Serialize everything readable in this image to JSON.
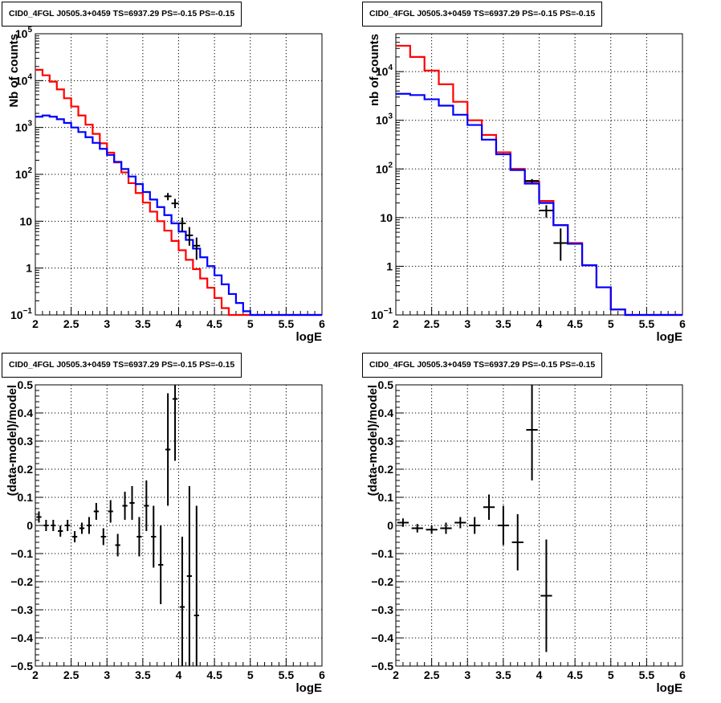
{
  "colors": {
    "data": "#000000",
    "total_model": "#ff0000",
    "source_model": "#0000ff",
    "grid": "#000000"
  },
  "chart_data": [
    {
      "type": "histogram",
      "title": "CID0_4FGL J0505.3+0459 TS=6937.29 PS=-0.15 PS=-0.15",
      "xlabel": "logE",
      "ylabel": "Nb of counts",
      "xlim": [
        2,
        6
      ],
      "ylim": [
        0.1,
        100000
      ],
      "yscale": "log",
      "grid": true,
      "x_ticks": [
        "2",
        "2.5",
        "3",
        "3.5",
        "4",
        "4.5",
        "5",
        "5.5",
        "6"
      ],
      "y_ticks": [
        {
          "value": 0.1,
          "base": "10",
          "exp": "−1"
        },
        {
          "value": 1,
          "label": "1"
        },
        {
          "value": 10,
          "label": "10"
        },
        {
          "value": 100,
          "base": "10",
          "exp": "2"
        },
        {
          "value": 1000,
          "base": "10",
          "exp": "3"
        },
        {
          "value": 10000,
          "base": "10",
          "exp": "4"
        },
        {
          "value": 100000,
          "base": "10",
          "exp": "5"
        }
      ],
      "bin_edges": [
        2.0,
        2.1,
        2.2,
        2.3,
        2.4,
        2.5,
        2.6,
        2.7,
        2.8,
        2.9,
        3.0,
        3.1,
        3.2,
        3.3,
        3.4,
        3.5,
        3.6,
        3.7,
        3.8,
        3.9,
        4.0,
        4.1,
        4.2,
        4.3,
        4.4,
        4.5,
        4.6,
        4.7,
        4.8,
        4.9,
        5.0,
        5.1,
        5.2,
        5.3,
        5.4,
        5.5,
        5.6,
        5.7,
        5.8,
        5.9,
        6.0
      ],
      "series": [
        {
          "role": "total_model",
          "color": "#ff0000",
          "values": [
            17000,
            13000,
            9500,
            6500,
            4200,
            2800,
            1800,
            1150,
            730,
            460,
            290,
            180,
            110,
            65,
            40,
            25,
            16,
            10,
            6.3,
            3.8,
            2.4,
            1.5,
            0.95,
            0.6,
            0.38,
            0.23,
            0.14,
            0.1,
            0.1,
            0.1,
            0.1,
            0.1,
            0.1,
            0.1,
            0.1,
            0.1,
            0.1,
            0.1,
            0.1,
            0.1
          ]
        },
        {
          "role": "source_model",
          "color": "#0000ff",
          "values": [
            1700,
            1800,
            1700,
            1500,
            1250,
            1000,
            800,
            620,
            470,
            350,
            260,
            185,
            130,
            90,
            62,
            42,
            29,
            20,
            13.5,
            9,
            6,
            4,
            2.6,
            1.7,
            1.1,
            0.7,
            0.45,
            0.28,
            0.18,
            0.12,
            0.1,
            0.1,
            0.1,
            0.1,
            0.1,
            0.1,
            0.1,
            0.1,
            0.1,
            0.1
          ]
        },
        {
          "role": "data",
          "color": "#000000",
          "points": [
            {
              "x": 3.85,
              "y": 34,
              "lo": 28,
              "hi": 40
            },
            {
              "x": 3.95,
              "y": 24,
              "lo": 19,
              "hi": 30
            },
            {
              "x": 4.05,
              "y": 9,
              "lo": 6,
              "hi": 12
            },
            {
              "x": 4.15,
              "y": 5,
              "lo": 3,
              "hi": 7.5
            },
            {
              "x": 4.25,
              "y": 3,
              "lo": 1.5,
              "hi": 4.5
            }
          ]
        }
      ]
    },
    {
      "type": "histogram",
      "title": "CID0_4FGL J0505.3+0459 TS=6937.29 PS=-0.15 PS=-0.15",
      "xlabel": "logE",
      "ylabel": "nb of counts",
      "xlim": [
        2,
        6
      ],
      "ylim": [
        0.1,
        60000
      ],
      "yscale": "log",
      "grid": true,
      "x_ticks": [
        "2",
        "2.5",
        "3",
        "3.5",
        "4",
        "4.5",
        "5",
        "5.5",
        "6"
      ],
      "y_ticks": [
        {
          "value": 0.1,
          "base": "10",
          "exp": "−1"
        },
        {
          "value": 1,
          "label": "1"
        },
        {
          "value": 10,
          "label": "10"
        },
        {
          "value": 100,
          "base": "10",
          "exp": "2"
        },
        {
          "value": 1000,
          "base": "10",
          "exp": "3"
        },
        {
          "value": 10000,
          "base": "10",
          "exp": "4"
        }
      ],
      "bin_edges": [
        2.0,
        2.2,
        2.4,
        2.6,
        2.8,
        3.0,
        3.2,
        3.4,
        3.6,
        3.8,
        4.0,
        4.2,
        4.4,
        4.6,
        4.8,
        5.0,
        5.2,
        5.4,
        5.6,
        5.8,
        6.0
      ],
      "series": [
        {
          "role": "total_model",
          "color": "#ff0000",
          "values": [
            34000,
            20000,
            10500,
            5500,
            2400,
            1000,
            500,
            220,
            100,
            55,
            22,
            7,
            3,
            1.05,
            0.37,
            0.13,
            0.1,
            0.1,
            0.1,
            0.1
          ]
        },
        {
          "role": "source_model",
          "color": "#0000ff",
          "values": [
            3500,
            3300,
            2700,
            2000,
            1300,
            800,
            400,
            200,
            95,
            50,
            20,
            7,
            2.9,
            1.05,
            0.37,
            0.13,
            0.1,
            0.1,
            0.1,
            0.1
          ]
        },
        {
          "role": "data",
          "color": "#000000",
          "points": [
            {
              "x": 3.9,
              "y": 57,
              "lo": 52,
              "hi": 62
            },
            {
              "x": 4.1,
              "y": 14,
              "lo": 10,
              "hi": 18
            },
            {
              "x": 4.3,
              "y": 3,
              "lo": 1.3,
              "hi": 6
            }
          ]
        }
      ]
    },
    {
      "type": "scatter",
      "title": "CID0_4FGL J0505.3+0459 TS=6937.29 PS=-0.15 PS=-0.15",
      "xlabel": "logE",
      "ylabel": "(data-model)/model",
      "xlim": [
        2,
        6
      ],
      "ylim": [
        -0.5,
        0.5
      ],
      "grid": true,
      "x_ticks": [
        "2",
        "2.5",
        "3",
        "3.5",
        "4",
        "4.5",
        "5",
        "5.5",
        "6"
      ],
      "y_ticks": [
        "−0.5",
        "−0.4",
        "−0.3",
        "−0.2",
        "−0.1",
        "0",
        "0.1",
        "0.2",
        "0.3",
        "0.4",
        "0.5"
      ],
      "points": [
        {
          "x": 2.05,
          "y": 0.03,
          "err": 0.02
        },
        {
          "x": 2.15,
          "y": 0.0,
          "err": 0.02
        },
        {
          "x": 2.25,
          "y": 0.0,
          "err": 0.02
        },
        {
          "x": 2.35,
          "y": -0.02,
          "err": 0.02
        },
        {
          "x": 2.45,
          "y": 0.0,
          "err": 0.02
        },
        {
          "x": 2.55,
          "y": -0.04,
          "err": 0.02
        },
        {
          "x": 2.65,
          "y": -0.01,
          "err": 0.02
        },
        {
          "x": 2.75,
          "y": 0.0,
          "err": 0.03
        },
        {
          "x": 2.85,
          "y": 0.05,
          "err": 0.03
        },
        {
          "x": 2.95,
          "y": -0.04,
          "err": 0.03
        },
        {
          "x": 3.05,
          "y": 0.05,
          "err": 0.04
        },
        {
          "x": 3.15,
          "y": -0.07,
          "err": 0.04
        },
        {
          "x": 3.25,
          "y": 0.07,
          "err": 0.05
        },
        {
          "x": 3.35,
          "y": 0.08,
          "err": 0.06
        },
        {
          "x": 3.45,
          "y": -0.04,
          "err": 0.07
        },
        {
          "x": 3.55,
          "y": 0.07,
          "err": 0.09
        },
        {
          "x": 3.65,
          "y": -0.04,
          "err": 0.11
        },
        {
          "x": 3.75,
          "y": -0.14,
          "err": 0.14
        },
        {
          "x": 3.85,
          "y": 0.27,
          "err": 0.2
        },
        {
          "x": 3.95,
          "y": 0.45,
          "err": 0.22
        },
        {
          "x": 4.05,
          "y": -0.29,
          "err": 0.25
        },
        {
          "x": 4.15,
          "y": -0.18,
          "err": 0.32
        },
        {
          "x": 4.25,
          "y": -0.32,
          "err": 0.39
        }
      ]
    },
    {
      "type": "scatter",
      "title": "CID0_4FGL J0505.3+0459 TS=6937.29 PS=-0.15 PS=-0.15",
      "xlabel": "logE",
      "ylabel": "(data-model)/model",
      "xlim": [
        2,
        6
      ],
      "ylim": [
        -0.5,
        0.5
      ],
      "grid": true,
      "x_ticks": [
        "2",
        "2.5",
        "3",
        "3.5",
        "4",
        "4.5",
        "5",
        "5.5",
        "6"
      ],
      "y_ticks": [
        "−0.5",
        "−0.4",
        "−0.3",
        "−0.2",
        "−0.1",
        "0",
        "0.1",
        "0.2",
        "0.3",
        "0.4",
        "0.5"
      ],
      "points": [
        {
          "x": 2.1,
          "y": 0.01,
          "err": 0.015
        },
        {
          "x": 2.3,
          "y": -0.01,
          "err": 0.015
        },
        {
          "x": 2.5,
          "y": -0.015,
          "err": 0.015
        },
        {
          "x": 2.7,
          "y": -0.01,
          "err": 0.02
        },
        {
          "x": 2.9,
          "y": 0.01,
          "err": 0.02
        },
        {
          "x": 3.1,
          "y": 0.0,
          "err": 0.03
        },
        {
          "x": 3.3,
          "y": 0.065,
          "err": 0.045
        },
        {
          "x": 3.5,
          "y": 0.0,
          "err": 0.07
        },
        {
          "x": 3.7,
          "y": -0.06,
          "err": 0.1
        },
        {
          "x": 3.9,
          "y": 0.34,
          "err": 0.18
        },
        {
          "x": 4.1,
          "y": -0.25,
          "err": 0.2
        }
      ]
    }
  ]
}
